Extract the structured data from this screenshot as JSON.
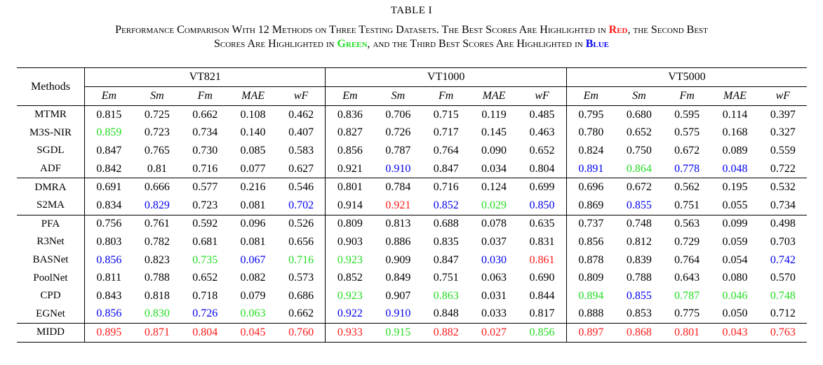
{
  "title": "TABLE I",
  "caption": {
    "line1_a": "Performance Comparison With 12 Methods on Three Testing Datasets. The Best Scores Are Highlighted in ",
    "red": "Red",
    "line1_b": ", the Second Best",
    "line2_a": "Scores Are Highlighted in ",
    "green": "Green",
    "line2_b": ", and the Third Best Scores Are Highlighted in ",
    "blue": "Blue"
  },
  "colors": {
    "red": "#ff1a1a",
    "green": "#22dd22",
    "blue": "#0000ee"
  },
  "table": {
    "method_header": "Methods",
    "datasets": [
      "VT821",
      "VT1000",
      "VT5000"
    ],
    "metrics": [
      "Em",
      "Sm",
      "Fm",
      "MAE",
      "wF"
    ],
    "groups": [
      [
        {
          "name": "MTMR",
          "values": [
            [
              "0.815",
              ""
            ],
            [
              "0.725",
              ""
            ],
            [
              "0.662",
              ""
            ],
            [
              "0.108",
              ""
            ],
            [
              "0.462",
              ""
            ],
            [
              "0.836",
              ""
            ],
            [
              "0.706",
              ""
            ],
            [
              "0.715",
              ""
            ],
            [
              "0.119",
              ""
            ],
            [
              "0.485",
              ""
            ],
            [
              "0.795",
              ""
            ],
            [
              "0.680",
              ""
            ],
            [
              "0.595",
              ""
            ],
            [
              "0.114",
              ""
            ],
            [
              "0.397",
              ""
            ]
          ]
        },
        {
          "name": "M3S-NIR",
          "values": [
            [
              "0.859",
              "green"
            ],
            [
              "0.723",
              ""
            ],
            [
              "0.734",
              ""
            ],
            [
              "0.140",
              ""
            ],
            [
              "0.407",
              ""
            ],
            [
              "0.827",
              ""
            ],
            [
              "0.726",
              ""
            ],
            [
              "0.717",
              ""
            ],
            [
              "0.145",
              ""
            ],
            [
              "0.463",
              ""
            ],
            [
              "0.780",
              ""
            ],
            [
              "0.652",
              ""
            ],
            [
              "0.575",
              ""
            ],
            [
              "0.168",
              ""
            ],
            [
              "0.327",
              ""
            ]
          ]
        },
        {
          "name": "SGDL",
          "values": [
            [
              "0.847",
              ""
            ],
            [
              "0.765",
              ""
            ],
            [
              "0.730",
              ""
            ],
            [
              "0.085",
              ""
            ],
            [
              "0.583",
              ""
            ],
            [
              "0.856",
              ""
            ],
            [
              "0.787",
              ""
            ],
            [
              "0.764",
              ""
            ],
            [
              "0.090",
              ""
            ],
            [
              "0.652",
              ""
            ],
            [
              "0.824",
              ""
            ],
            [
              "0.750",
              ""
            ],
            [
              "0.672",
              ""
            ],
            [
              "0.089",
              ""
            ],
            [
              "0.559",
              ""
            ]
          ]
        },
        {
          "name": "ADF",
          "values": [
            [
              "0.842",
              ""
            ],
            [
              "0.81",
              ""
            ],
            [
              "0.716",
              ""
            ],
            [
              "0.077",
              ""
            ],
            [
              "0.627",
              ""
            ],
            [
              "0.921",
              ""
            ],
            [
              "0.910",
              "blue"
            ],
            [
              "0.847",
              ""
            ],
            [
              "0.034",
              ""
            ],
            [
              "0.804",
              ""
            ],
            [
              "0.891",
              "blue"
            ],
            [
              "0.864",
              "green"
            ],
            [
              "0.778",
              "blue"
            ],
            [
              "0.048",
              "blue"
            ],
            [
              "0.722",
              ""
            ]
          ]
        }
      ],
      [
        {
          "name": "DMRA",
          "values": [
            [
              "0.691",
              ""
            ],
            [
              "0.666",
              ""
            ],
            [
              "0.577",
              ""
            ],
            [
              "0.216",
              ""
            ],
            [
              "0.546",
              ""
            ],
            [
              "0.801",
              ""
            ],
            [
              "0.784",
              ""
            ],
            [
              "0.716",
              ""
            ],
            [
              "0.124",
              ""
            ],
            [
              "0.699",
              ""
            ],
            [
              "0.696",
              ""
            ],
            [
              "0.672",
              ""
            ],
            [
              "0.562",
              ""
            ],
            [
              "0.195",
              ""
            ],
            [
              "0.532",
              ""
            ]
          ]
        },
        {
          "name": "S2MA",
          "values": [
            [
              "0.834",
              ""
            ],
            [
              "0.829",
              "blue"
            ],
            [
              "0.723",
              ""
            ],
            [
              "0.081",
              ""
            ],
            [
              "0.702",
              "blue"
            ],
            [
              "0.914",
              ""
            ],
            [
              "0.921",
              "red"
            ],
            [
              "0.852",
              "blue"
            ],
            [
              "0.029",
              "green"
            ],
            [
              "0.850",
              "blue"
            ],
            [
              "0.869",
              ""
            ],
            [
              "0.855",
              "blue"
            ],
            [
              "0.751",
              ""
            ],
            [
              "0.055",
              ""
            ],
            [
              "0.734",
              ""
            ]
          ]
        }
      ],
      [
        {
          "name": "PFA",
          "values": [
            [
              "0.756",
              ""
            ],
            [
              "0.761",
              ""
            ],
            [
              "0.592",
              ""
            ],
            [
              "0.096",
              ""
            ],
            [
              "0.526",
              ""
            ],
            [
              "0.809",
              ""
            ],
            [
              "0.813",
              ""
            ],
            [
              "0.688",
              ""
            ],
            [
              "0.078",
              ""
            ],
            [
              "0.635",
              ""
            ],
            [
              "0.737",
              ""
            ],
            [
              "0.748",
              ""
            ],
            [
              "0.563",
              ""
            ],
            [
              "0.099",
              ""
            ],
            [
              "0.498",
              ""
            ]
          ]
        },
        {
          "name": "R3Net",
          "values": [
            [
              "0.803",
              ""
            ],
            [
              "0.782",
              ""
            ],
            [
              "0.681",
              ""
            ],
            [
              "0.081",
              ""
            ],
            [
              "0.656",
              ""
            ],
            [
              "0.903",
              ""
            ],
            [
              "0.886",
              ""
            ],
            [
              "0.835",
              ""
            ],
            [
              "0.037",
              ""
            ],
            [
              "0.831",
              ""
            ],
            [
              "0.856",
              ""
            ],
            [
              "0.812",
              ""
            ],
            [
              "0.729",
              ""
            ],
            [
              "0.059",
              ""
            ],
            [
              "0.703",
              ""
            ]
          ]
        },
        {
          "name": "BASNet",
          "values": [
            [
              "0.856",
              "blue"
            ],
            [
              "0.823",
              ""
            ],
            [
              "0.735",
              "green"
            ],
            [
              "0.067",
              "blue"
            ],
            [
              "0.716",
              "green"
            ],
            [
              "0.923",
              "green"
            ],
            [
              "0.909",
              ""
            ],
            [
              "0.847",
              ""
            ],
            [
              "0.030",
              "blue"
            ],
            [
              "0.861",
              "red"
            ],
            [
              "0.878",
              ""
            ],
            [
              "0.839",
              ""
            ],
            [
              "0.764",
              ""
            ],
            [
              "0.054",
              ""
            ],
            [
              "0.742",
              "blue"
            ]
          ]
        },
        {
          "name": "PoolNet",
          "values": [
            [
              "0.811",
              ""
            ],
            [
              "0.788",
              ""
            ],
            [
              "0.652",
              ""
            ],
            [
              "0.082",
              ""
            ],
            [
              "0.573",
              ""
            ],
            [
              "0.852",
              ""
            ],
            [
              "0.849",
              ""
            ],
            [
              "0.751",
              ""
            ],
            [
              "0.063",
              ""
            ],
            [
              "0.690",
              ""
            ],
            [
              "0.809",
              ""
            ],
            [
              "0.788",
              ""
            ],
            [
              "0.643",
              ""
            ],
            [
              "0.080",
              ""
            ],
            [
              "0.570",
              ""
            ]
          ]
        },
        {
          "name": "CPD",
          "values": [
            [
              "0.843",
              ""
            ],
            [
              "0.818",
              ""
            ],
            [
              "0.718",
              ""
            ],
            [
              "0.079",
              ""
            ],
            [
              "0.686",
              ""
            ],
            [
              "0.923",
              "green"
            ],
            [
              "0.907",
              ""
            ],
            [
              "0.863",
              "green"
            ],
            [
              "0.031",
              ""
            ],
            [
              "0.844",
              ""
            ],
            [
              "0.894",
              "green"
            ],
            [
              "0.855",
              "blue"
            ],
            [
              "0.787",
              "green"
            ],
            [
              "0.046",
              "green"
            ],
            [
              "0.748",
              "green"
            ]
          ]
        },
        {
          "name": "EGNet",
          "values": [
            [
              "0.856",
              "blue"
            ],
            [
              "0.830",
              "green"
            ],
            [
              "0.726",
              "blue"
            ],
            [
              "0.063",
              "green"
            ],
            [
              "0.662",
              ""
            ],
            [
              "0.922",
              "blue"
            ],
            [
              "0.910",
              "blue"
            ],
            [
              "0.848",
              ""
            ],
            [
              "0.033",
              ""
            ],
            [
              "0.817",
              ""
            ],
            [
              "0.888",
              ""
            ],
            [
              "0.853",
              ""
            ],
            [
              "0.775",
              ""
            ],
            [
              "0.050",
              ""
            ],
            [
              "0.712",
              ""
            ]
          ]
        }
      ],
      [
        {
          "name": "MIDD",
          "values": [
            [
              "0.895",
              "red"
            ],
            [
              "0.871",
              "red"
            ],
            [
              "0.804",
              "red"
            ],
            [
              "0.045",
              "red"
            ],
            [
              "0.760",
              "red"
            ],
            [
              "0.933",
              "red"
            ],
            [
              "0.915",
              "green"
            ],
            [
              "0.882",
              "red"
            ],
            [
              "0.027",
              "red"
            ],
            [
              "0.856",
              "green"
            ],
            [
              "0.897",
              "red"
            ],
            [
              "0.868",
              "red"
            ],
            [
              "0.801",
              "red"
            ],
            [
              "0.043",
              "red"
            ],
            [
              "0.763",
              "red"
            ]
          ]
        }
      ]
    ]
  }
}
